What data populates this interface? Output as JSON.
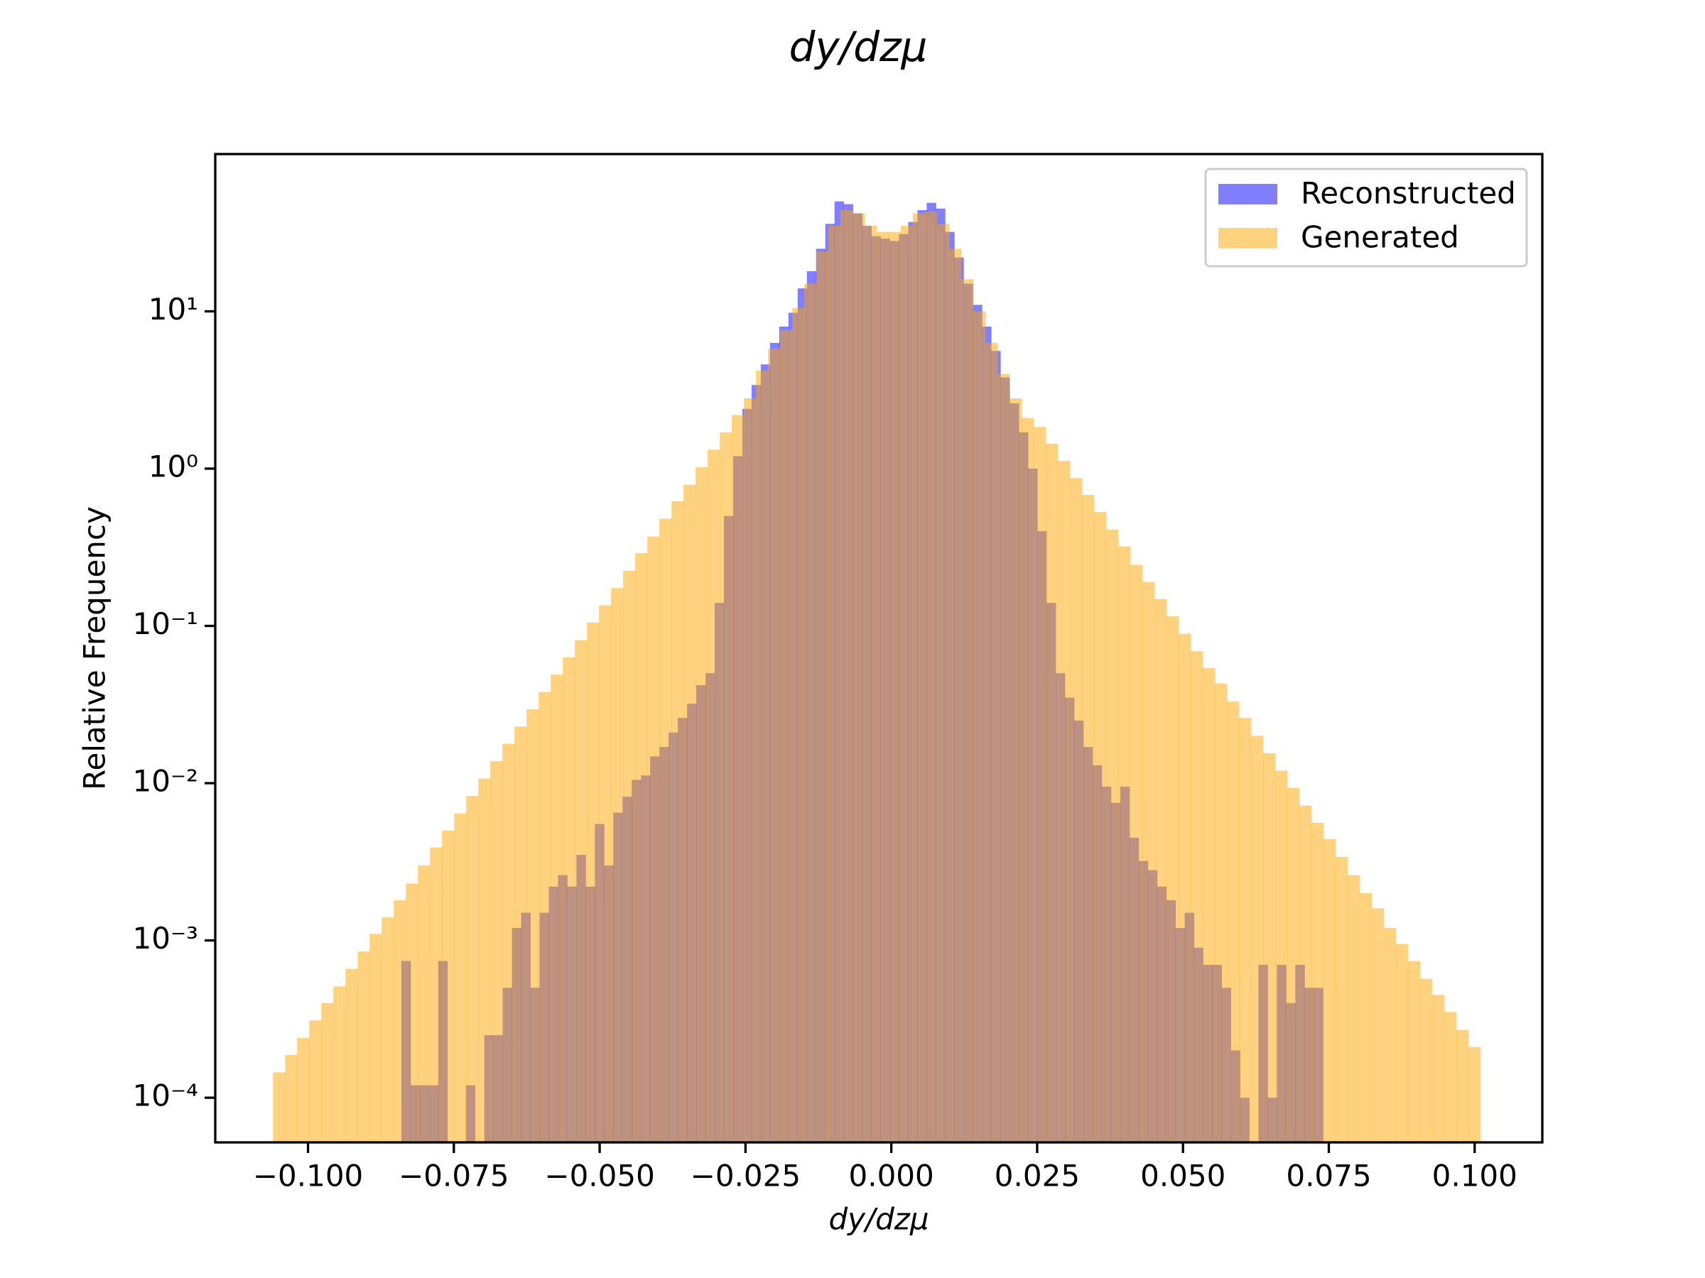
{
  "chart_data": {
    "type": "histogram",
    "title": "dy/dzμ",
    "x_label": "dy/dzμ",
    "y_label": "Relative Frequency",
    "log_y": true,
    "legend": "upper right",
    "xlim": [
      -0.1159,
      0.1116
    ],
    "ylim": [
      5.2e-05,
      100
    ],
    "xticks": [
      {
        "value": -0.1,
        "label": "−0.100"
      },
      {
        "value": -0.075,
        "label": "−0.075"
      },
      {
        "value": -0.05,
        "label": "−0.050"
      },
      {
        "value": -0.025,
        "label": "−0.025"
      },
      {
        "value": 0,
        "label": "0.000"
      },
      {
        "value": 0.025,
        "label": "0.025"
      },
      {
        "value": 0.05,
        "label": "0.050"
      },
      {
        "value": 0.075,
        "label": "0.075"
      },
      {
        "value": 0.1,
        "label": "0.100"
      }
    ],
    "yticks": [
      {
        "value": 0.0001,
        "label": "10⁻⁴"
      },
      {
        "value": 0.001,
        "label": "10⁻³"
      },
      {
        "value": 0.01,
        "label": "10⁻²"
      },
      {
        "value": 0.1,
        "label": "10⁻¹"
      },
      {
        "value": 1,
        "label": "10⁰"
      },
      {
        "value": 10,
        "label": "10¹"
      }
    ],
    "series": [
      {
        "name": "Reconstructed",
        "color": "#0000ff",
        "opacity": 0.5,
        "bins": [
          -0.084,
          -0.08242,
          -0.08084,
          -0.07926,
          -0.07768,
          -0.0761,
          -0.07452,
          -0.07294,
          -0.07136,
          -0.06978,
          -0.0682,
          -0.06662,
          -0.06504,
          -0.06346,
          -0.06188,
          -0.0603,
          -0.05872,
          -0.05714,
          -0.05556,
          -0.05398,
          -0.0524,
          -0.05082,
          -0.04924,
          -0.04766,
          -0.04608,
          -0.0445,
          -0.04292,
          -0.04134,
          -0.03976,
          -0.03818,
          -0.0366,
          -0.03502,
          -0.03344,
          -0.03186,
          -0.03028,
          -0.0287,
          -0.02712,
          -0.02554,
          -0.02396,
          -0.02238,
          -0.0208,
          -0.01922,
          -0.01764,
          -0.01606,
          -0.01448,
          -0.0129,
          -0.01132,
          -0.00974,
          -0.00816,
          -0.00658,
          -0.005,
          -0.00342,
          -0.00184,
          -0.00026,
          0.00132,
          0.0029,
          0.00448,
          0.00606,
          0.00764,
          0.00922,
          0.0108,
          0.01238,
          0.01396,
          0.01554,
          0.01712,
          0.0187,
          0.02028,
          0.02186,
          0.02344,
          0.02502,
          0.0266,
          0.02818,
          0.02976,
          0.03134,
          0.03292,
          0.0345,
          0.03608,
          0.03766,
          0.03924,
          0.04082,
          0.0424,
          0.04398,
          0.04556,
          0.04714,
          0.04872,
          0.0503,
          0.05188,
          0.05346,
          0.05504,
          0.05662,
          0.0582,
          0.05978,
          0.06136,
          0.06294,
          0.06452,
          0.0661,
          0.06768,
          0.06926,
          0.07084,
          0.07242,
          0.074
        ],
        "values": [
          0.00074,
          0.00012,
          0.00012,
          0.00012,
          0.00074,
          0,
          0,
          0.00012,
          0,
          0.00025,
          0.00025,
          0.0005,
          0.0012,
          0.0015,
          0.0005,
          0.0015,
          0.0022,
          0.0026,
          0.0022,
          0.0035,
          0.0022,
          0.0055,
          0.003,
          0.0065,
          0.0082,
          0.0105,
          0.0112,
          0.0148,
          0.017,
          0.021,
          0.026,
          0.032,
          0.042,
          0.05,
          0.14,
          0.5,
          1.2,
          2.4,
          3.4,
          4.6,
          6.3,
          8,
          9.8,
          14,
          18,
          25,
          36,
          50,
          48,
          42,
          35,
          30,
          29,
          28,
          31,
          37,
          44,
          49,
          45,
          32,
          22,
          15,
          11,
          8,
          5.6,
          3.8,
          2.6,
          1.7,
          1,
          0.4,
          0.14,
          0.05,
          0.035,
          0.025,
          0.017,
          0.013,
          0.0095,
          0.0075,
          0.0095,
          0.0045,
          0.0032,
          0.0028,
          0.0022,
          0.0018,
          0.0012,
          0.0015,
          0.0009,
          0.0007,
          0.0007,
          0.0005,
          0.0002,
          0.0001,
          0,
          0.0007,
          0.0001,
          0.0007,
          0.0004,
          0.0007,
          0.0005,
          0.0005
        ]
      },
      {
        "name": "Generated",
        "color": "#ffa500",
        "opacity": 0.5,
        "bins": [
          -0.106,
          -0.10393,
          -0.10186,
          -0.09979,
          -0.09772,
          -0.09565,
          -0.09358,
          -0.09151,
          -0.08944,
          -0.08737,
          -0.0853,
          -0.08323,
          -0.08116,
          -0.07909,
          -0.07702,
          -0.07495,
          -0.07288,
          -0.07081,
          -0.06874,
          -0.06667,
          -0.0646,
          -0.06253,
          -0.06046,
          -0.05839,
          -0.05632,
          -0.05425,
          -0.05218,
          -0.05011,
          -0.04804,
          -0.04597,
          -0.0439,
          -0.04183,
          -0.03976,
          -0.03769,
          -0.03562,
          -0.03355,
          -0.03148,
          -0.02941,
          -0.02734,
          -0.02527,
          -0.0232,
          -0.02113,
          -0.01906,
          -0.01699,
          -0.01492,
          -0.01285,
          -0.01078,
          -0.00871,
          -0.00664,
          -0.00457,
          -0.0025,
          -0.00043,
          0.00164,
          0.00371,
          0.00578,
          0.00785,
          0.00992,
          0.01199,
          0.01406,
          0.01613,
          0.0182,
          0.02027,
          0.02234,
          0.02441,
          0.02648,
          0.02855,
          0.03062,
          0.03269,
          0.03476,
          0.03683,
          0.0389,
          0.04097,
          0.04304,
          0.04511,
          0.04718,
          0.04925,
          0.05132,
          0.05339,
          0.05546,
          0.05753,
          0.0596,
          0.06167,
          0.06374,
          0.06581,
          0.06788,
          0.06995,
          0.07202,
          0.07409,
          0.07616,
          0.07823,
          0.0803,
          0.08237,
          0.08444,
          0.08651,
          0.08858,
          0.09065,
          0.09272,
          0.09479,
          0.09686,
          0.09893,
          0.101
        ],
        "values": [
          0.000145,
          0.000187,
          0.00024,
          0.00031,
          0.0004,
          0.00051,
          0.00066,
          0.00085,
          0.0011,
          0.0014,
          0.0018,
          0.0023,
          0.003,
          0.0039,
          0.005,
          0.0064,
          0.0083,
          0.0107,
          0.0138,
          0.0178,
          0.0229,
          0.0295,
          0.038,
          0.049,
          0.063,
          0.081,
          0.105,
          0.135,
          0.174,
          0.224,
          0.29,
          0.37,
          0.48,
          0.62,
          0.79,
          1.02,
          1.32,
          1.7,
          2.19,
          2.8,
          4.2,
          5.8,
          7.6,
          10.5,
          15,
          24,
          35,
          44,
          42,
          35,
          32,
          32,
          35,
          42,
          43,
          36,
          25,
          16,
          10,
          6.3,
          4,
          2.8,
          2.1,
          1.84,
          1.44,
          1.12,
          0.87,
          0.68,
          0.53,
          0.41,
          0.32,
          0.245,
          0.19,
          0.148,
          0.115,
          0.089,
          0.069,
          0.054,
          0.043,
          0.033,
          0.026,
          0.02,
          0.0155,
          0.012,
          0.0093,
          0.0072,
          0.0056,
          0.0044,
          0.0034,
          0.0026,
          0.002,
          0.0016,
          0.0012,
          0.00095,
          0.00074,
          0.00057,
          0.00045,
          0.00035,
          0.00027,
          0.00021
        ]
      }
    ]
  }
}
